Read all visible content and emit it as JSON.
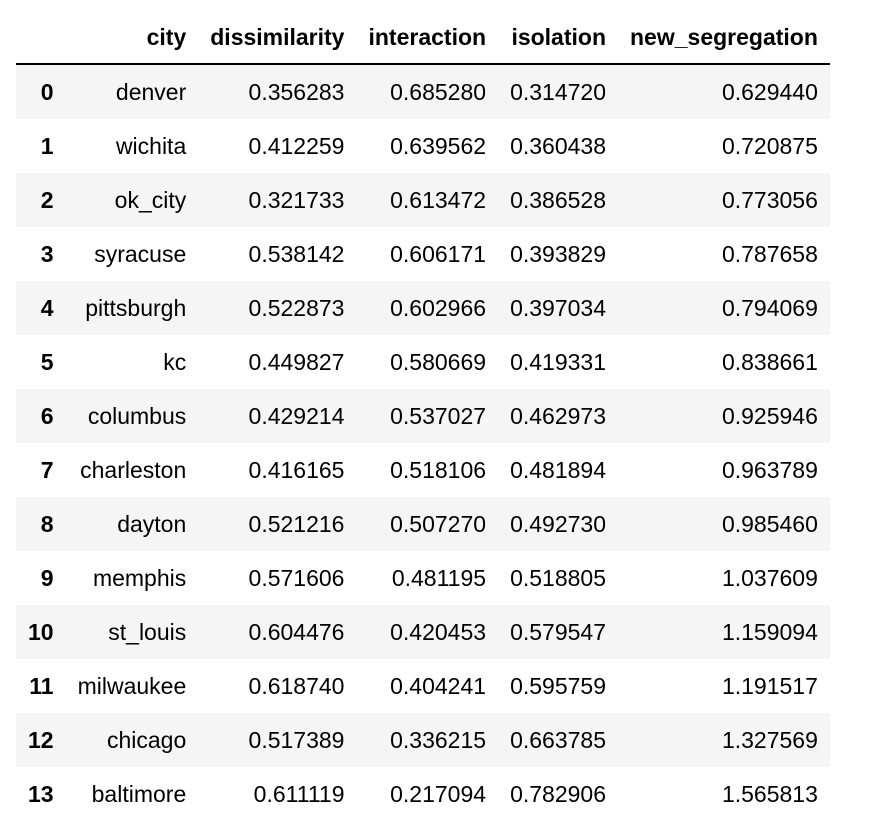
{
  "table": {
    "columns": [
      "city",
      "dissimilarity",
      "interaction",
      "isolation",
      "new_segregation"
    ],
    "rows": [
      {
        "index": "0",
        "city": "denver",
        "dissimilarity": "0.356283",
        "interaction": "0.685280",
        "isolation": "0.314720",
        "new_segregation": "0.629440"
      },
      {
        "index": "1",
        "city": "wichita",
        "dissimilarity": "0.412259",
        "interaction": "0.639562",
        "isolation": "0.360438",
        "new_segregation": "0.720875"
      },
      {
        "index": "2",
        "city": "ok_city",
        "dissimilarity": "0.321733",
        "interaction": "0.613472",
        "isolation": "0.386528",
        "new_segregation": "0.773056"
      },
      {
        "index": "3",
        "city": "syracuse",
        "dissimilarity": "0.538142",
        "interaction": "0.606171",
        "isolation": "0.393829",
        "new_segregation": "0.787658"
      },
      {
        "index": "4",
        "city": "pittsburgh",
        "dissimilarity": "0.522873",
        "interaction": "0.602966",
        "isolation": "0.397034",
        "new_segregation": "0.794069"
      },
      {
        "index": "5",
        "city": "kc",
        "dissimilarity": "0.449827",
        "interaction": "0.580669",
        "isolation": "0.419331",
        "new_segregation": "0.838661"
      },
      {
        "index": "6",
        "city": "columbus",
        "dissimilarity": "0.429214",
        "interaction": "0.537027",
        "isolation": "0.462973",
        "new_segregation": "0.925946"
      },
      {
        "index": "7",
        "city": "charleston",
        "dissimilarity": "0.416165",
        "interaction": "0.518106",
        "isolation": "0.481894",
        "new_segregation": "0.963789"
      },
      {
        "index": "8",
        "city": "dayton",
        "dissimilarity": "0.521216",
        "interaction": "0.507270",
        "isolation": "0.492730",
        "new_segregation": "0.985460"
      },
      {
        "index": "9",
        "city": "memphis",
        "dissimilarity": "0.571606",
        "interaction": "0.481195",
        "isolation": "0.518805",
        "new_segregation": "1.037609"
      },
      {
        "index": "10",
        "city": "st_louis",
        "dissimilarity": "0.604476",
        "interaction": "0.420453",
        "isolation": "0.579547",
        "new_segregation": "1.159094"
      },
      {
        "index": "11",
        "city": "milwaukee",
        "dissimilarity": "0.618740",
        "interaction": "0.404241",
        "isolation": "0.595759",
        "new_segregation": "1.191517"
      },
      {
        "index": "12",
        "city": "chicago",
        "dissimilarity": "0.517389",
        "interaction": "0.336215",
        "isolation": "0.663785",
        "new_segregation": "1.327569"
      },
      {
        "index": "13",
        "city": "baltimore",
        "dissimilarity": "0.611119",
        "interaction": "0.217094",
        "isolation": "0.782906",
        "new_segregation": "1.565813"
      }
    ]
  },
  "colors": {
    "stripe_row": "#f5f5f5",
    "header_rule": "#000000"
  }
}
